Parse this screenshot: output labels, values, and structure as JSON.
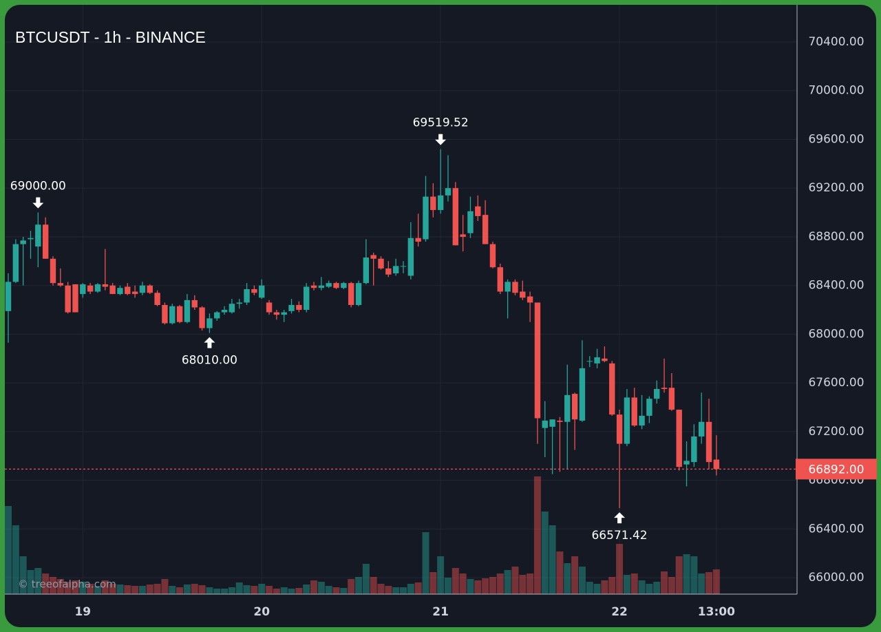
{
  "chart_data": {
    "type": "candlestick",
    "title": "BTCUSDT - 1h - BINANCE",
    "watermark": "© treeofalpha.com",
    "categories": [
      null,
      null,
      null,
      null,
      null,
      null,
      null,
      null,
      null,
      null,
      "19",
      null,
      null,
      null,
      null,
      null,
      null,
      null,
      null,
      null,
      null,
      null,
      null,
      null,
      null,
      null,
      null,
      null,
      null,
      null,
      null,
      null,
      null,
      null,
      "20",
      null,
      null,
      null,
      null,
      null,
      null,
      null,
      null,
      null,
      null,
      null,
      null,
      null,
      null,
      null,
      null,
      null,
      null,
      null,
      null,
      null,
      null,
      null,
      "21",
      null,
      null,
      null,
      null,
      null,
      null,
      null,
      null,
      null,
      null,
      null,
      null,
      null,
      null,
      null,
      null,
      null,
      null,
      null,
      null,
      null,
      null,
      null,
      "22",
      null,
      null,
      null,
      null,
      null,
      null,
      null,
      null,
      null,
      null,
      null,
      null,
      "13:00"
    ],
    "open": [
      68190,
      68430,
      68740,
      68780,
      68720,
      68900,
      68620,
      68420,
      68400,
      68410,
      68330,
      68400,
      68350,
      68410,
      68400,
      68330,
      68390,
      68350,
      68340,
      68400,
      68340,
      68240,
      68090,
      68230,
      68100,
      68280,
      68220,
      68050,
      68130,
      68180,
      68180,
      68250,
      68260,
      68370,
      68300,
      68260,
      68180,
      68160,
      68190,
      68240,
      68200,
      68400,
      68380,
      68390,
      68420,
      68380,
      68420,
      68240,
      68420,
      68650,
      68620,
      68540,
      68500,
      68560,
      68480,
      68790,
      68780,
      69130,
      69020,
      69140,
      69200,
      68820,
      68830,
      69050,
      68980,
      68740,
      68550,
      68350,
      68430,
      68350,
      68310,
      68260,
      67230,
      67240,
      67290,
      67280,
      67510,
      67290,
      67780,
      67760,
      67800,
      67760,
      67340,
      67100,
      67480,
      67250,
      67330,
      67470,
      67560,
      67560,
      67380,
      66930,
      66950,
      67160,
      67280,
      66970
    ],
    "high": [
      68500,
      68780,
      68800,
      68850,
      69000,
      68960,
      68640,
      68540,
      68430,
      68410,
      68420,
      68420,
      68420,
      68700,
      68420,
      68400,
      68420,
      68400,
      68430,
      68410,
      68360,
      68260,
      68250,
      68240,
      68330,
      68320,
      68230,
      68170,
      68190,
      68230,
      68290,
      68290,
      68420,
      68400,
      68450,
      68280,
      68200,
      68200,
      68290,
      68270,
      68420,
      68430,
      68470,
      68440,
      68430,
      68430,
      68430,
      68440,
      68780,
      68670,
      68640,
      68600,
      68620,
      68600,
      68920,
      68990,
      69300,
      69240,
      69519.52,
      69470,
      69250,
      68980,
      69130,
      69140,
      69100,
      68760,
      68580,
      68450,
      68450,
      68440,
      68350,
      68260,
      67450,
      67300,
      67320,
      67750,
      67520,
      67950,
      67820,
      67880,
      67900,
      67780,
      67380,
      67550,
      67560,
      67500,
      67490,
      67620,
      67800,
      67680,
      67380,
      67120,
      67260,
      67520,
      67470,
      67170
    ],
    "low": [
      67930,
      68420,
      68400,
      68620,
      68550,
      68620,
      68400,
      68390,
      68170,
      68180,
      68300,
      68330,
      68340,
      68360,
      68330,
      68320,
      68320,
      68300,
      68320,
      68330,
      68230,
      68080,
      68080,
      68090,
      68090,
      68200,
      68030,
      68010,
      68110,
      68160,
      68170,
      68210,
      68240,
      68320,
      68290,
      68160,
      68120,
      68100,
      68170,
      68180,
      68180,
      68360,
      68360,
      68380,
      68370,
      68370,
      68220,
      68230,
      68410,
      68400,
      68530,
      68470,
      68480,
      68500,
      68450,
      68720,
      68760,
      68960,
      68990,
      69090,
      68730,
      68680,
      68790,
      68930,
      68740,
      68540,
      68330,
      68130,
      68320,
      68280,
      68100,
      67100,
      66990,
      66850,
      66870,
      66890,
      67050,
      67280,
      67730,
      67720,
      67770,
      67330,
      66571.42,
      67080,
      67240,
      67220,
      67270,
      67430,
      67520,
      67370,
      66880,
      66750,
      66910,
      67100,
      66890,
      66840
    ],
    "close": [
      68430,
      68740,
      68770,
      68790,
      68900,
      68620,
      68420,
      68400,
      68180,
      68180,
      68410,
      68350,
      68410,
      68390,
      68330,
      68380,
      68330,
      68330,
      68400,
      68340,
      68240,
      68090,
      68230,
      68100,
      68280,
      68220,
      68050,
      68130,
      68180,
      68200,
      68250,
      68260,
      68370,
      68340,
      68400,
      68180,
      68160,
      68180,
      68240,
      68200,
      68390,
      68380,
      68400,
      68420,
      68380,
      68420,
      68240,
      68420,
      68630,
      68620,
      68540,
      68490,
      68560,
      68560,
      68790,
      68760,
      69130,
      69020,
      69140,
      69200,
      68730,
      68800,
      69010,
      68970,
      68740,
      68550,
      68350,
      68430,
      68340,
      68300,
      68260,
      67310,
      67290,
      67300,
      67280,
      67500,
      67300,
      67720,
      67780,
      67810,
      67780,
      67340,
      67100,
      67480,
      67250,
      67330,
      67470,
      67550,
      67550,
      67380,
      66910,
      66960,
      67160,
      67280,
      66950,
      66892
    ],
    "volume": [
      128,
      100,
      55,
      35,
      38,
      30,
      25,
      22,
      18,
      20,
      18,
      15,
      12,
      20,
      15,
      14,
      13,
      12,
      12,
      14,
      15,
      22,
      12,
      10,
      14,
      15,
      13,
      10,
      8,
      8,
      10,
      17,
      13,
      12,
      15,
      12,
      8,
      10,
      8,
      9,
      14,
      20,
      18,
      12,
      10,
      9,
      22,
      25,
      44,
      25,
      15,
      12,
      10,
      10,
      15,
      17,
      90,
      32,
      55,
      24,
      38,
      30,
      22,
      20,
      23,
      25,
      30,
      35,
      40,
      28,
      30,
      171,
      120,
      100,
      62,
      45,
      55,
      40,
      18,
      15,
      20,
      25,
      73,
      28,
      30,
      20,
      15,
      18,
      33,
      25,
      55,
      58,
      55,
      30,
      32,
      36
    ],
    "up_color": "#26a69a",
    "down_color": "#ef5350",
    "ylim": [
      65865,
      70745
    ],
    "yticks": [
      {
        "value": 66000,
        "label": "66000.00"
      },
      {
        "value": 66400,
        "label": "66400.00"
      },
      {
        "value": 66800,
        "label": "66800.00"
      },
      {
        "value": 67200,
        "label": "67200.00"
      },
      {
        "value": 67600,
        "label": "67600.00"
      },
      {
        "value": 68000,
        "label": "68000.00"
      },
      {
        "value": 68400,
        "label": "68400.00"
      },
      {
        "value": 68800,
        "label": "68800.00"
      },
      {
        "value": 69200,
        "label": "69200.00"
      },
      {
        "value": 69600,
        "label": "69600.00"
      },
      {
        "value": 70000,
        "label": "70000.00"
      },
      {
        "value": 70400,
        "label": "70400.00"
      }
    ],
    "grid": true,
    "price_line": {
      "value": 66892,
      "label": "66892.00"
    },
    "annotations": [
      {
        "value": 69000,
        "label": "69000.00"
      },
      {
        "value": 68010,
        "label": "68010.00"
      },
      {
        "value": 69519.52,
        "label": "69519.52"
      },
      {
        "value": 66571.42,
        "label": "66571.42"
      }
    ]
  }
}
